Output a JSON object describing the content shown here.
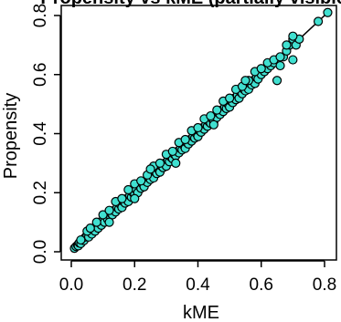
{
  "chart_data": {
    "type": "scatter",
    "title": "Propensity vs kME (partially visible)",
    "xlabel": "kME",
    "ylabel": "Propensity",
    "xlim": [
      0.0,
      0.82
    ],
    "ylim": [
      0.0,
      0.82
    ],
    "xticks": [
      0.0,
      0.2,
      0.4,
      0.6,
      0.8
    ],
    "yticks": [
      0.0,
      0.2,
      0.4,
      0.6,
      0.8
    ],
    "xtick_labels": [
      "0.0",
      "0.2",
      "0.4",
      "0.6",
      "0.8"
    ],
    "ytick_labels": [
      "0.0",
      "0.2",
      "0.4",
      "0.6",
      "0.8"
    ],
    "grid": false,
    "legend": "none",
    "reference_line": {
      "slope": 1,
      "intercept": 0
    },
    "point_fill": "#40e0d0",
    "point_stroke": "#000000",
    "series": [
      {
        "x": [
          0.01,
          0.015,
          0.02,
          0.022,
          0.025,
          0.03,
          0.035,
          0.04,
          0.045,
          0.05,
          0.055,
          0.06,
          0.065,
          0.07,
          0.075,
          0.08,
          0.085,
          0.09,
          0.095,
          0.1,
          0.105,
          0.11,
          0.115,
          0.12,
          0.125,
          0.13,
          0.135,
          0.14,
          0.145,
          0.15,
          0.155,
          0.16,
          0.165,
          0.17,
          0.175,
          0.18,
          0.185,
          0.19,
          0.195,
          0.2,
          0.205,
          0.21,
          0.215,
          0.22,
          0.225,
          0.23,
          0.235,
          0.24,
          0.245,
          0.25,
          0.255,
          0.26,
          0.265,
          0.27,
          0.275,
          0.28,
          0.285,
          0.29,
          0.295,
          0.3,
          0.305,
          0.31,
          0.315,
          0.32,
          0.325,
          0.33,
          0.335,
          0.34,
          0.345,
          0.35,
          0.355,
          0.36,
          0.365,
          0.37,
          0.375,
          0.38,
          0.385,
          0.39,
          0.395,
          0.4,
          0.405,
          0.41,
          0.415,
          0.42,
          0.425,
          0.43,
          0.435,
          0.44,
          0.445,
          0.45,
          0.455,
          0.46,
          0.465,
          0.47,
          0.475,
          0.48,
          0.485,
          0.49,
          0.495,
          0.5,
          0.505,
          0.51,
          0.515,
          0.52,
          0.525,
          0.53,
          0.535,
          0.54,
          0.545,
          0.55,
          0.555,
          0.56,
          0.565,
          0.57,
          0.575,
          0.58,
          0.585,
          0.59,
          0.6,
          0.61,
          0.62,
          0.63,
          0.64,
          0.65,
          0.66,
          0.67,
          0.68,
          0.69,
          0.7,
          0.71,
          0.72,
          0.81,
          0.78,
          0.03,
          0.05,
          0.06,
          0.08,
          0.1,
          0.12,
          0.14,
          0.16,
          0.18,
          0.2,
          0.22,
          0.24,
          0.26,
          0.28,
          0.3,
          0.32,
          0.34,
          0.36,
          0.38,
          0.4,
          0.42,
          0.44,
          0.46,
          0.48,
          0.5,
          0.52,
          0.54,
          0.56,
          0.58,
          0.6,
          0.62,
          0.64,
          0.66,
          0.68,
          0.7,
          0.12,
          0.2,
          0.25,
          0.33,
          0.45,
          0.55,
          0.65,
          0.7
        ],
        "y": [
          0.012,
          0.018,
          0.023,
          0.02,
          0.03,
          0.028,
          0.04,
          0.038,
          0.05,
          0.055,
          0.05,
          0.068,
          0.06,
          0.075,
          0.07,
          0.09,
          0.08,
          0.1,
          0.09,
          0.105,
          0.1,
          0.12,
          0.11,
          0.125,
          0.13,
          0.125,
          0.14,
          0.135,
          0.15,
          0.145,
          0.16,
          0.15,
          0.17,
          0.165,
          0.18,
          0.17,
          0.19,
          0.185,
          0.2,
          0.195,
          0.21,
          0.2,
          0.225,
          0.215,
          0.23,
          0.22,
          0.24,
          0.235,
          0.25,
          0.245,
          0.26,
          0.25,
          0.27,
          0.265,
          0.28,
          0.27,
          0.29,
          0.285,
          0.3,
          0.29,
          0.31,
          0.305,
          0.32,
          0.315,
          0.33,
          0.325,
          0.34,
          0.335,
          0.35,
          0.345,
          0.36,
          0.35,
          0.37,
          0.365,
          0.38,
          0.375,
          0.39,
          0.385,
          0.4,
          0.39,
          0.41,
          0.405,
          0.42,
          0.415,
          0.43,
          0.425,
          0.44,
          0.435,
          0.45,
          0.44,
          0.46,
          0.455,
          0.47,
          0.465,
          0.48,
          0.475,
          0.49,
          0.485,
          0.5,
          0.49,
          0.51,
          0.505,
          0.52,
          0.515,
          0.53,
          0.52,
          0.54,
          0.535,
          0.55,
          0.545,
          0.56,
          0.55,
          0.57,
          0.565,
          0.58,
          0.57,
          0.59,
          0.585,
          0.6,
          0.61,
          0.62,
          0.63,
          0.64,
          0.65,
          0.63,
          0.66,
          0.68,
          0.7,
          0.72,
          0.7,
          0.72,
          0.81,
          0.78,
          0.04,
          0.07,
          0.08,
          0.1,
          0.125,
          0.14,
          0.17,
          0.18,
          0.21,
          0.23,
          0.24,
          0.26,
          0.29,
          0.3,
          0.33,
          0.34,
          0.37,
          0.38,
          0.41,
          0.42,
          0.45,
          0.46,
          0.48,
          0.51,
          0.52,
          0.55,
          0.56,
          0.58,
          0.61,
          0.62,
          0.64,
          0.65,
          0.66,
          0.7,
          0.73,
          0.1,
          0.18,
          0.28,
          0.3,
          0.43,
          0.58,
          0.58,
          0.65
        ]
      }
    ]
  }
}
